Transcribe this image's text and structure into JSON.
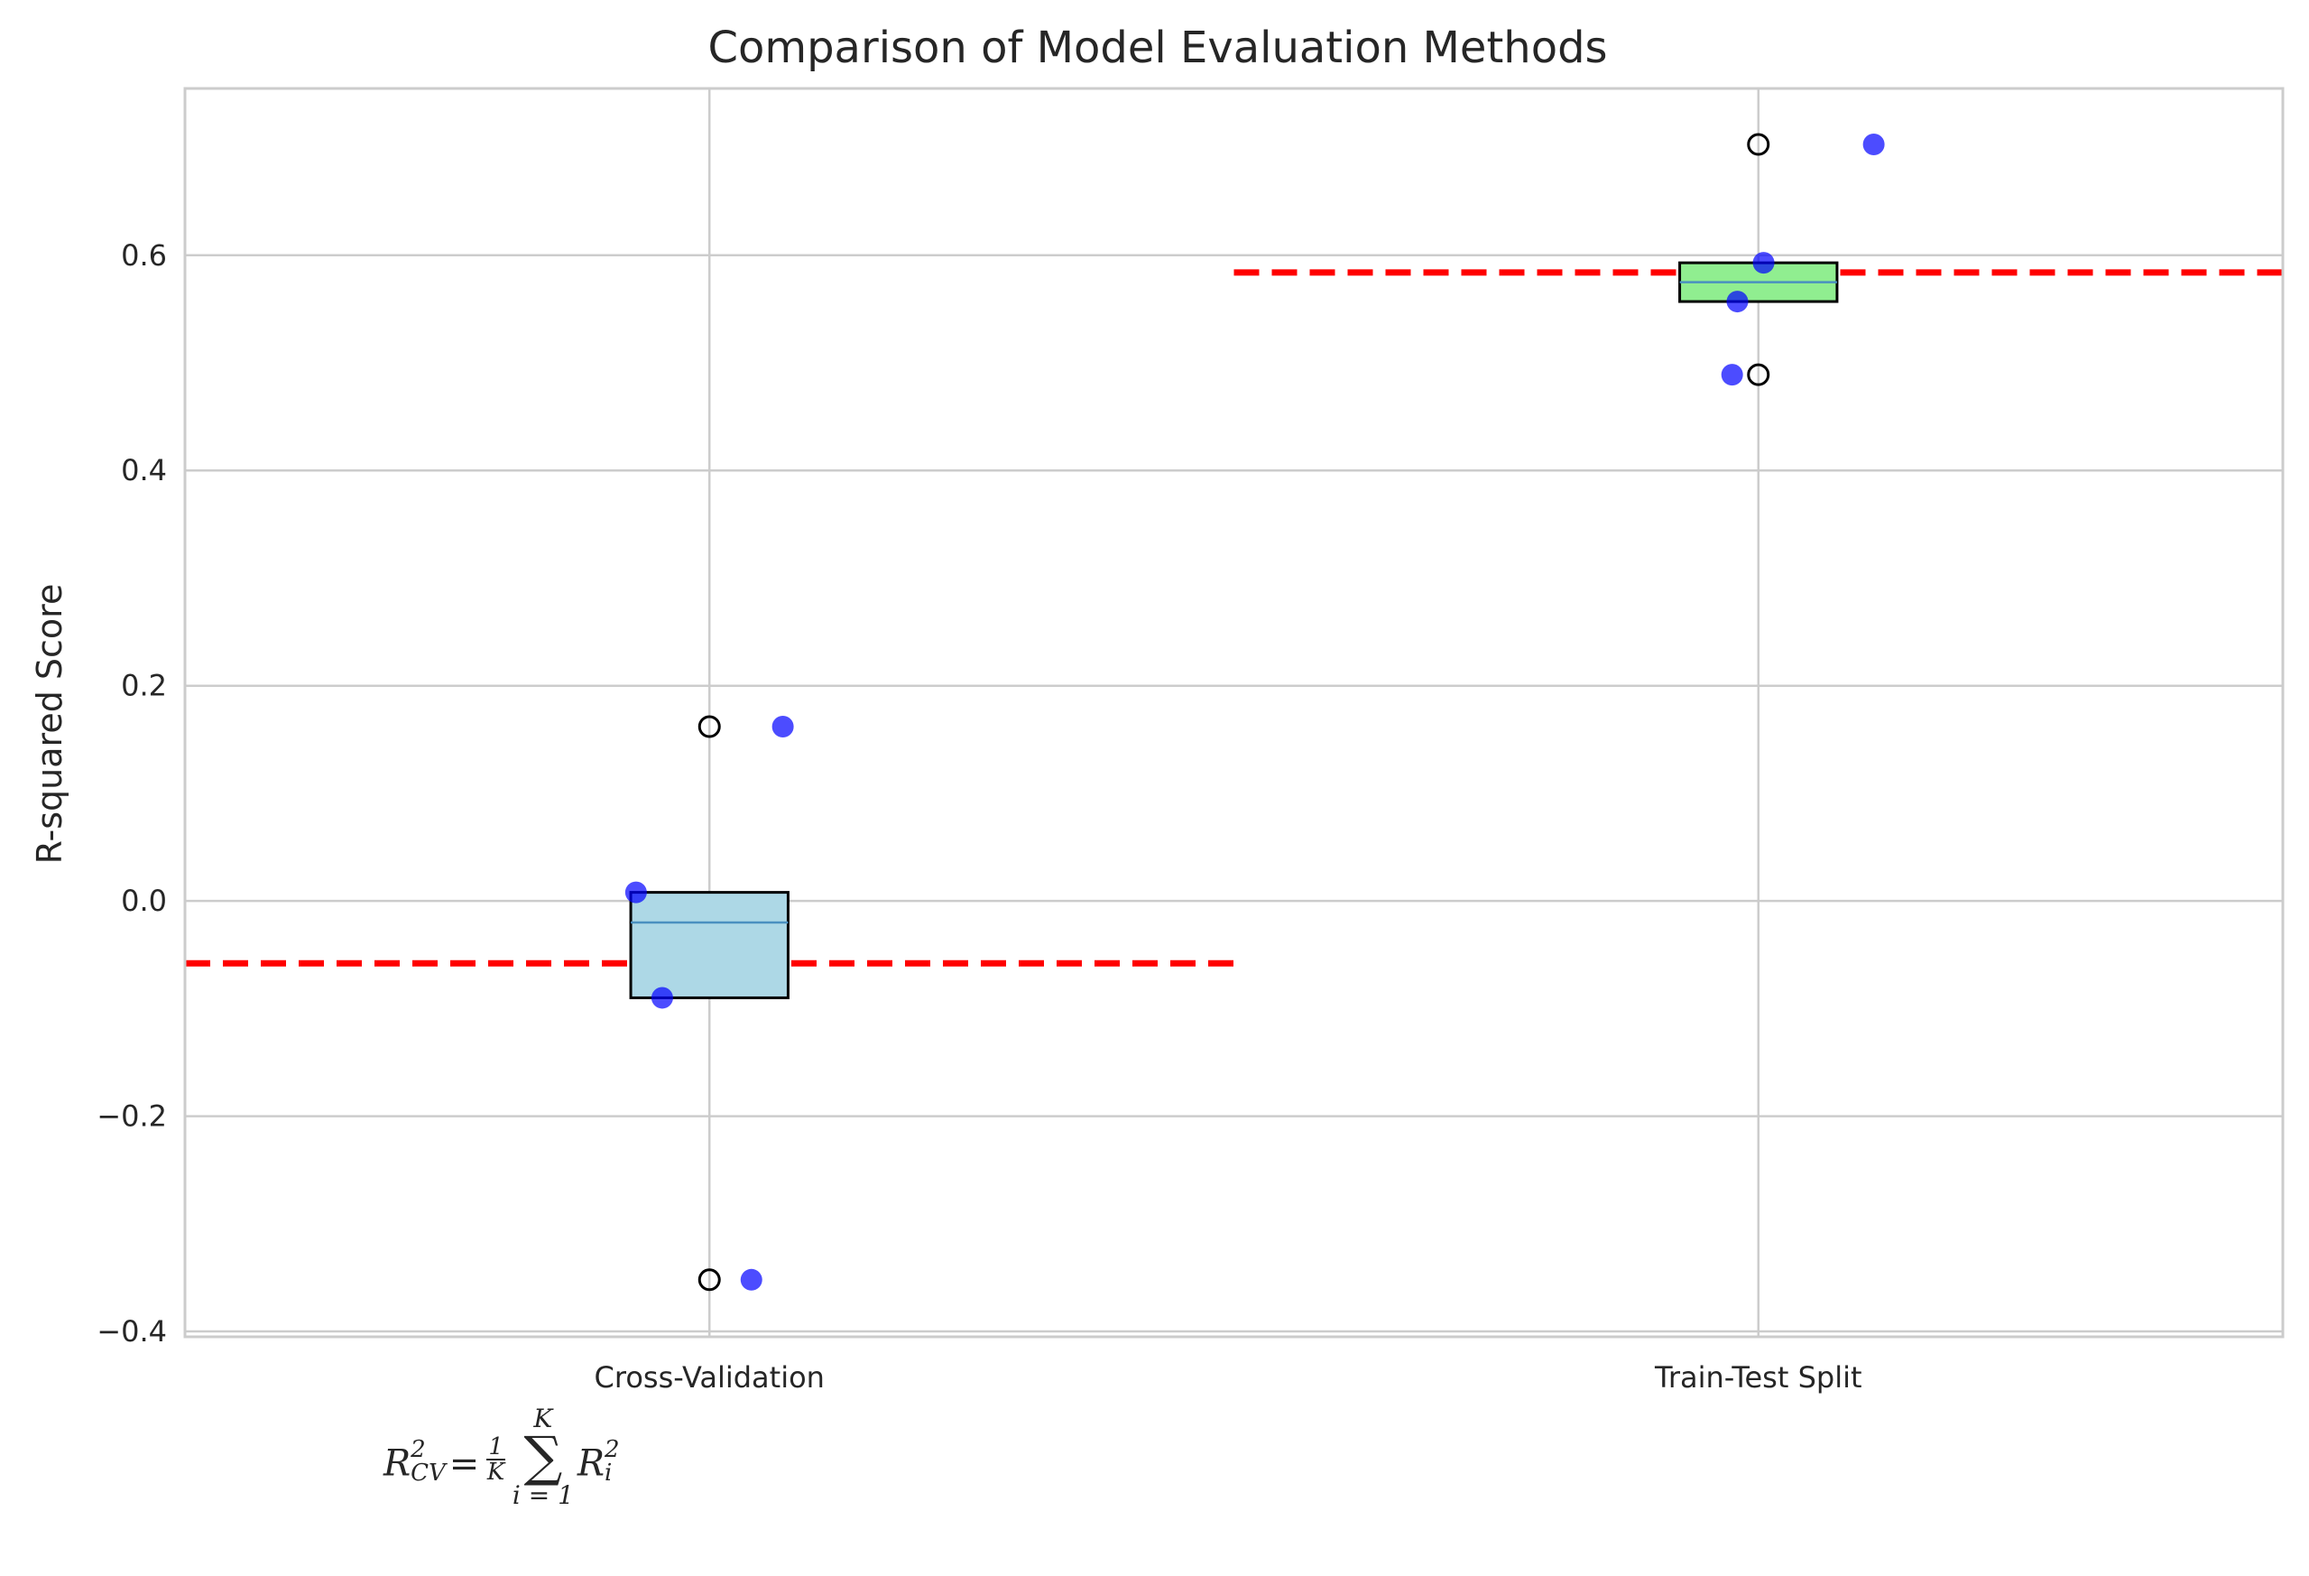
{
  "chart_data": {
    "type": "box",
    "title": "Comparison of Model Evaluation Methods",
    "xlabel": "",
    "ylabel": "R-squared Score",
    "ylim": [
      -0.405,
      0.755
    ],
    "yticks": [
      -0.4,
      -0.2,
      0.0,
      0.2,
      0.4,
      0.6
    ],
    "ytick_labels": [
      "−0.4",
      "−0.2",
      "0.0",
      "0.2",
      "0.4",
      "0.6"
    ],
    "categories": [
      "Cross-Validation",
      "Train-Test Split"
    ],
    "grid": true,
    "boxes": [
      {
        "category": "Cross-Validation",
        "q1": -0.09,
        "median": -0.02,
        "q3": 0.008,
        "whisker_low": -0.09,
        "whisker_high": 0.008,
        "fill": "#add8e6",
        "fliers": [
          0.162,
          -0.352
        ],
        "points": [
          {
            "x": 0.93,
            "y": 0.008
          },
          {
            "x": 0.955,
            "y": -0.09
          },
          {
            "x": 1.07,
            "y": 0.162
          },
          {
            "x": 1.04,
            "y": -0.352
          }
        ]
      },
      {
        "category": "Train-Test Split",
        "q1": 0.557,
        "median": 0.575,
        "q3": 0.593,
        "whisker_low": 0.557,
        "whisker_high": 0.593,
        "fill": "#90ee90",
        "fliers": [
          0.703,
          0.489
        ],
        "points": [
          {
            "x": 1.98,
            "y": 0.557
          },
          {
            "x": 2.005,
            "y": 0.593
          },
          {
            "x": 1.975,
            "y": 0.489
          },
          {
            "x": 2.11,
            "y": 0.703
          }
        ]
      }
    ],
    "mean_lines": [
      {
        "category": "Cross-Validation",
        "value": -0.058,
        "x_range": [
          0.5,
          1.5
        ],
        "color": "#ff0000",
        "style": "dashed"
      },
      {
        "category": "Train-Test Split",
        "value": 0.584,
        "x_range": [
          1.5,
          2.5
        ],
        "color": "#ff0000",
        "style": "dashed"
      }
    ],
    "point_color": "#0000ff",
    "median_color": "#4a90c0",
    "annotation": {
      "R": "R",
      "sub": "CV",
      "sup": "2",
      "equals": "=",
      "frac_num": "1",
      "frac_den": "K",
      "sum_top": "K",
      "sum_bottom": "i = 1",
      "Ri": "R",
      "Ri_sub": "i",
      "Ri_sup": "2"
    }
  }
}
